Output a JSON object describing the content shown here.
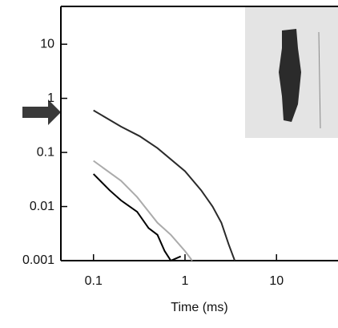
{
  "chart_data": {
    "type": "line",
    "xlabel": "Time (ms)",
    "xscale": "log",
    "yscale": "log",
    "xlim": [
      0.044,
      47
    ],
    "ylim": [
      0.001,
      50
    ],
    "xticks": [
      0.1,
      1,
      10
    ],
    "yticks": [
      0.001,
      0.01,
      0.1,
      1,
      10
    ],
    "series": [
      {
        "color": "#2a2a2a",
        "x": [
          0.1,
          0.2,
          0.32,
          0.5,
          1,
          1.5,
          2,
          2.5,
          3,
          3.5
        ],
        "values": [
          0.6,
          0.3,
          0.2,
          0.12,
          0.045,
          0.02,
          0.01,
          0.005,
          0.002,
          0.001
        ]
      },
      {
        "color": "#ababab",
        "x": [
          0.1,
          0.2,
          0.3,
          0.5,
          0.7,
          1,
          1.2
        ],
        "values": [
          0.07,
          0.03,
          0.015,
          0.005,
          0.003,
          0.0015,
          0.001
        ]
      },
      {
        "color": "#000000",
        "x": [
          0.1,
          0.15,
          0.2,
          0.3,
          0.4,
          0.5,
          0.6,
          0.7,
          0.9
        ],
        "values": [
          0.04,
          0.02,
          0.013,
          0.008,
          0.004,
          0.003,
          0.0015,
          0.001,
          0.0012
        ]
      }
    ]
  }
}
